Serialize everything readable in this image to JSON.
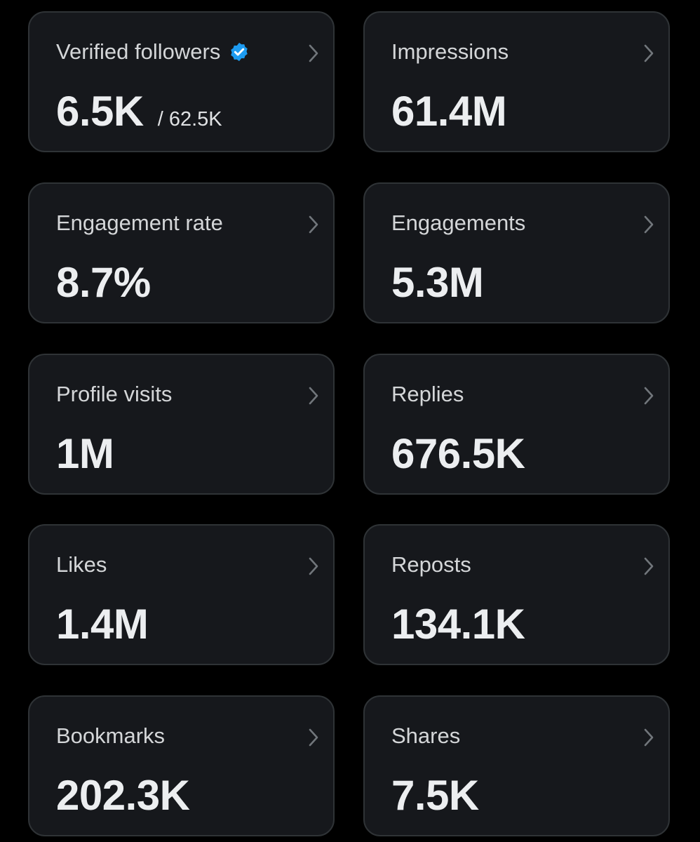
{
  "cards": [
    {
      "label": "Verified followers",
      "value": "6.5K",
      "total": "/ 62.5K"
    },
    {
      "label": "Impressions",
      "value": "61.4M"
    },
    {
      "label": "Engagement rate",
      "value": "8.7%"
    },
    {
      "label": "Engagements",
      "value": "5.3M"
    },
    {
      "label": "Profile visits",
      "value": "1M"
    },
    {
      "label": "Replies",
      "value": "676.5K"
    },
    {
      "label": "Likes",
      "value": "1.4M"
    },
    {
      "label": "Reposts",
      "value": "134.1K"
    },
    {
      "label": "Bookmarks",
      "value": "202.3K"
    },
    {
      "label": "Shares",
      "value": "7.5K"
    }
  ]
}
